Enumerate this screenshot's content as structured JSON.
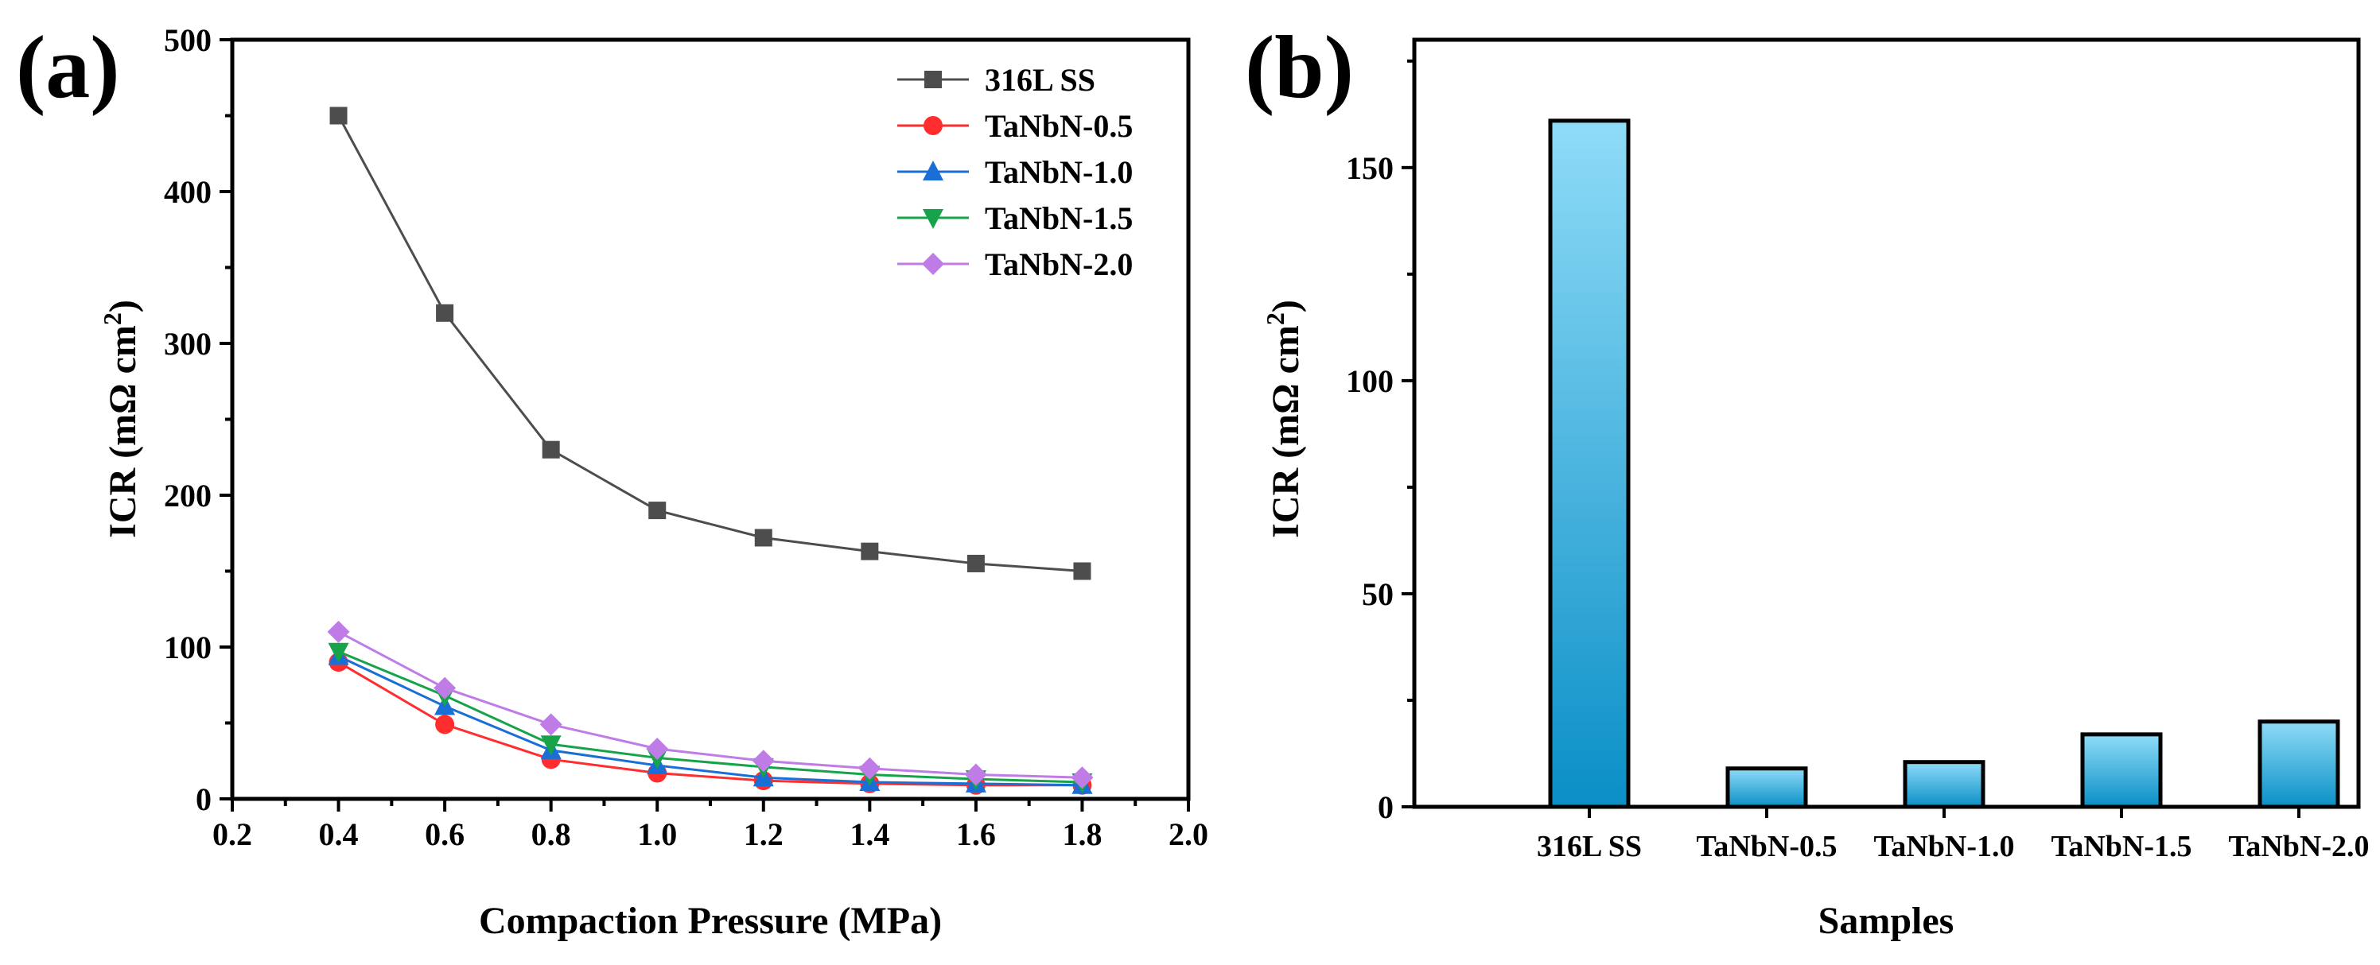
{
  "panel_labels": {
    "a": "(a)",
    "b": "(b)"
  },
  "colors": {
    "316L SS": "#4d4d4d",
    "TaNbN-0.5": "#ff2d2d",
    "TaNbN-1.0": "#1a6fd6",
    "TaNbN-1.5": "#16a34a",
    "TaNbN-2.0": "#c07ce6",
    "bar_top": "#8fdcf8",
    "bar_bottom": "#0a8fc6"
  },
  "chart_data": [
    {
      "type": "line",
      "title": "",
      "xlabel": "Compaction Pressure (MPa)",
      "ylabel_main": "ICR (mΩ cm",
      "ylabel_sup": "2",
      "ylabel_end": ")",
      "xlim": [
        0.2,
        2.0
      ],
      "ylim": [
        0,
        500
      ],
      "xticks": [
        "0.2",
        "0.4",
        "0.6",
        "0.8",
        "1.0",
        "1.2",
        "1.4",
        "1.6",
        "1.8",
        "2.0"
      ],
      "yticks": [
        "0",
        "100",
        "200",
        "300",
        "400",
        "500"
      ],
      "x": [
        0.4,
        0.6,
        0.8,
        1.0,
        1.2,
        1.4,
        1.6,
        1.8
      ],
      "legend_position": "top-right",
      "series": [
        {
          "name": "316L SS",
          "marker": "square",
          "values": [
            450,
            320,
            230,
            190,
            172,
            163,
            155,
            150
          ]
        },
        {
          "name": "TaNbN-0.5",
          "marker": "circle",
          "values": [
            90,
            49,
            26,
            17,
            12,
            10,
            9,
            9
          ]
        },
        {
          "name": "TaNbN-1.0",
          "marker": "triangle-up",
          "values": [
            94,
            61,
            32,
            22,
            14,
            11,
            10,
            9
          ]
        },
        {
          "name": "TaNbN-1.5",
          "marker": "triangle-down",
          "values": [
            97,
            68,
            36,
            27,
            21,
            16,
            13,
            11
          ]
        },
        {
          "name": "TaNbN-2.0",
          "marker": "diamond",
          "values": [
            110,
            73,
            49,
            33,
            25,
            20,
            16,
            14
          ]
        }
      ]
    },
    {
      "type": "bar",
      "title": "",
      "xlabel": "Samples",
      "ylabel_main": "ICR (mΩ cm",
      "ylabel_sup": "2",
      "ylabel_end": ")",
      "ylim": [
        0,
        180
      ],
      "yticks": [
        "0",
        "50",
        "100",
        "150"
      ],
      "categories": [
        "316L SS",
        "TaNbN-0.5",
        "TaNbN-1.0",
        "TaNbN-1.5",
        "TaNbN-2.0"
      ],
      "values": [
        161,
        9,
        10.5,
        17,
        20
      ]
    }
  ]
}
